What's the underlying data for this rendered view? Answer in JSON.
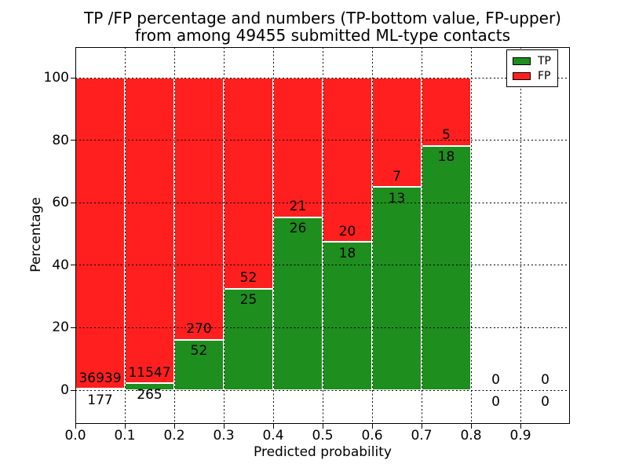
{
  "title": {
    "line1": "TP /FP percentage and numbers (TP-bottom value, FP-upper)",
    "line2": "from among 49455 submitted ML-type contacts"
  },
  "chart_data": {
    "type": "bar",
    "variant": "stacked-percentage",
    "title": "TP /FP percentage and numbers (TP-bottom value, FP-upper) from among 49455 submitted ML-type contacts",
    "total_contacts": 49455,
    "xlabel": "Predicted probability",
    "ylabel": "Percentage",
    "x_ticks": [
      "0.0",
      "0.1",
      "0.2",
      "0.3",
      "0.4",
      "0.5",
      "0.6",
      "0.7",
      "0.8",
      "0.9"
    ],
    "y_ticks": [
      0,
      20,
      40,
      60,
      80,
      100
    ],
    "xlim": [
      0.0,
      1.0
    ],
    "ylim": [
      -11,
      110
    ],
    "bin_width": 0.1,
    "grid": "dotted, drawn on top of bars",
    "bins": [
      {
        "x_start": 0.0,
        "x_end": 0.1,
        "tp": 177,
        "fp": 36939,
        "tp_pct": 0.5,
        "fp_pct": 99.5
      },
      {
        "x_start": 0.1,
        "x_end": 0.2,
        "tp": 265,
        "fp": 11547,
        "tp_pct": 2.2,
        "fp_pct": 97.8
      },
      {
        "x_start": 0.2,
        "x_end": 0.3,
        "tp": 52,
        "fp": 270,
        "tp_pct": 16.1,
        "fp_pct": 83.9
      },
      {
        "x_start": 0.3,
        "x_end": 0.4,
        "tp": 25,
        "fp": 52,
        "tp_pct": 32.5,
        "fp_pct": 67.5
      },
      {
        "x_start": 0.4,
        "x_end": 0.5,
        "tp": 26,
        "fp": 21,
        "tp_pct": 55.3,
        "fp_pct": 44.7
      },
      {
        "x_start": 0.5,
        "x_end": 0.6,
        "tp": 18,
        "fp": 20,
        "tp_pct": 47.4,
        "fp_pct": 52.6
      },
      {
        "x_start": 0.6,
        "x_end": 0.7,
        "tp": 13,
        "fp": 7,
        "tp_pct": 65.0,
        "fp_pct": 35.0
      },
      {
        "x_start": 0.7,
        "x_end": 0.8,
        "tp": 18,
        "fp": 5,
        "tp_pct": 78.3,
        "fp_pct": 21.7
      },
      {
        "x_start": 0.8,
        "x_end": 0.9,
        "tp": 0,
        "fp": 0,
        "tp_pct": null,
        "fp_pct": null
      },
      {
        "x_start": 0.9,
        "x_end": 1.0,
        "tp": 0,
        "fp": 0,
        "tp_pct": null,
        "fp_pct": null
      }
    ],
    "legend": {
      "position": "upper-right",
      "entries": [
        {
          "label": "TP",
          "color": "#1e8e1e"
        },
        {
          "label": "FP",
          "color": "#ff1f1f"
        }
      ]
    },
    "colors": {
      "tp": "#1e8e1e",
      "fp": "#ff1f1f",
      "bar_edge": "#ffffff",
      "grid": "#000000",
      "background": "#ffffff"
    }
  }
}
